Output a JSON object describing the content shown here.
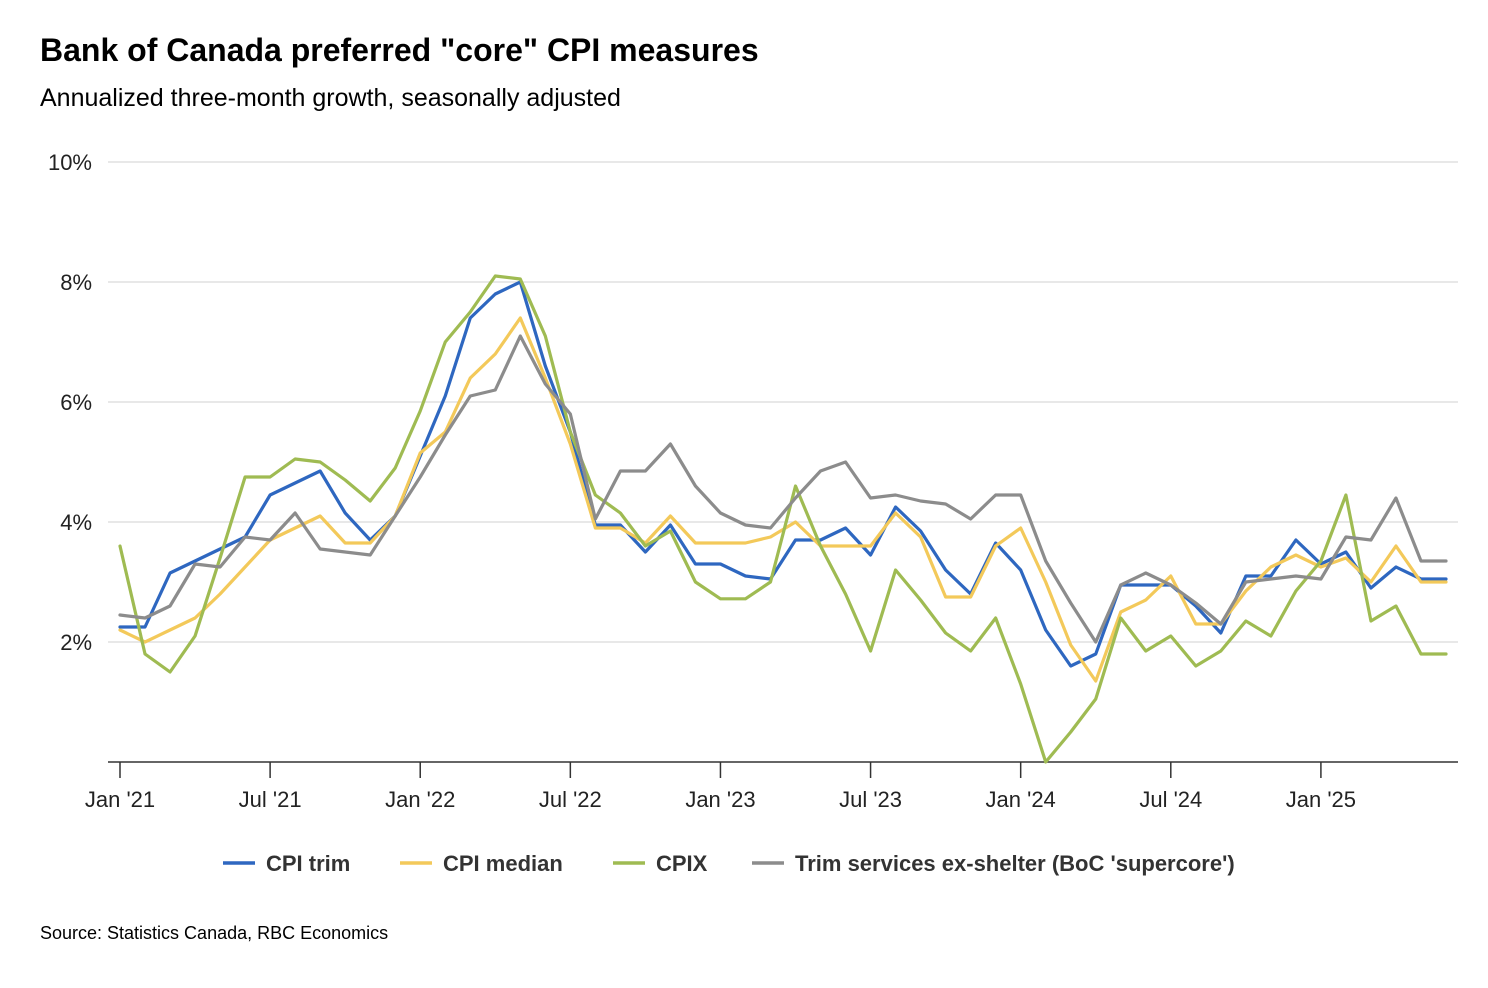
{
  "title": "Bank of Canada preferred \"core\" CPI measures",
  "subtitle": "Annualized three-month growth, seasonally adjusted",
  "source": "Source: Statistics Canada, RBC Economics",
  "chart_data": {
    "type": "line",
    "ylim": [
      0,
      10
    ],
    "y_ticks": [
      {
        "value": 2,
        "label": "2%"
      },
      {
        "value": 4,
        "label": "4%"
      },
      {
        "value": 6,
        "label": "6%"
      },
      {
        "value": 8,
        "label": "8%"
      },
      {
        "value": 10,
        "label": "10%"
      }
    ],
    "x_ticks": [
      {
        "index": 0,
        "label": "Jan '21"
      },
      {
        "index": 6,
        "label": "Jul '21"
      },
      {
        "index": 12,
        "label": "Jan '22"
      },
      {
        "index": 18,
        "label": "Jul '22"
      },
      {
        "index": 24,
        "label": "Jan '23"
      },
      {
        "index": 30,
        "label": "Jul '23"
      },
      {
        "index": 36,
        "label": "Jan '24"
      },
      {
        "index": 42,
        "label": "Jul '24"
      },
      {
        "index": 48,
        "label": "Jan '25"
      }
    ],
    "x_start": "Jan 2021",
    "x_frequency": "monthly",
    "n_points": 54,
    "grid": true,
    "legend_position": "bottom",
    "series": [
      {
        "name": "CPI trim",
        "color": "#2e67c0",
        "values": [
          2.25,
          2.25,
          3.15,
          3.35,
          3.55,
          3.75,
          4.45,
          4.65,
          4.85,
          4.15,
          3.7,
          4.1,
          5.1,
          6.1,
          7.4,
          7.8,
          8.0,
          6.6,
          5.5,
          3.95,
          3.95,
          3.5,
          3.95,
          3.3,
          3.3,
          3.1,
          3.05,
          3.7,
          3.7,
          3.9,
          3.45,
          4.25,
          3.85,
          3.2,
          2.8,
          3.65,
          3.2,
          2.2,
          1.6,
          1.8,
          2.95,
          2.95,
          2.95,
          2.6,
          2.15,
          3.1,
          3.1,
          3.7,
          3.3,
          3.5,
          2.9,
          3.25,
          3.05,
          3.05
        ]
      },
      {
        "name": "CPI median",
        "color": "#f3c95a",
        "values": [
          2.2,
          2.0,
          2.2,
          2.4,
          2.8,
          3.25,
          3.7,
          3.9,
          4.1,
          3.65,
          3.65,
          4.1,
          5.15,
          5.5,
          6.4,
          6.8,
          7.4,
          6.4,
          5.3,
          3.9,
          3.9,
          3.65,
          4.1,
          3.65,
          3.65,
          3.65,
          3.75,
          4.0,
          3.6,
          3.6,
          3.6,
          4.15,
          3.75,
          2.75,
          2.75,
          3.6,
          3.9,
          3.0,
          1.95,
          1.35,
          2.5,
          2.7,
          3.1,
          2.3,
          2.3,
          2.85,
          3.25,
          3.45,
          3.25,
          3.4,
          3.0,
          3.6,
          3.0,
          3.0
        ]
      },
      {
        "name": "CPIX",
        "color": "#9fbb52",
        "values": [
          3.6,
          1.8,
          1.5,
          2.1,
          3.4,
          4.75,
          4.75,
          5.05,
          5.0,
          4.7,
          4.35,
          4.9,
          5.85,
          7.0,
          7.5,
          8.1,
          8.05,
          7.1,
          5.5,
          4.45,
          4.15,
          3.6,
          3.85,
          3.0,
          2.72,
          2.72,
          3.0,
          4.6,
          3.6,
          2.8,
          1.85,
          3.2,
          2.7,
          2.15,
          1.85,
          2.4,
          1.3,
          0.0,
          0.5,
          1.05,
          2.4,
          1.85,
          2.1,
          1.6,
          1.85,
          2.35,
          2.1,
          2.85,
          3.35,
          4.45,
          2.35,
          2.6,
          1.8,
          1.8
        ]
      },
      {
        "name": "Trim services ex-shelter (BoC 'supercore')",
        "color": "#8c8c8c",
        "values": [
          2.45,
          2.4,
          2.6,
          3.3,
          3.25,
          3.75,
          3.7,
          4.15,
          3.55,
          3.5,
          3.45,
          4.1,
          4.75,
          5.45,
          6.1,
          6.2,
          7.1,
          6.3,
          5.8,
          4.05,
          4.85,
          4.85,
          5.3,
          4.6,
          4.15,
          3.95,
          3.9,
          4.4,
          4.85,
          5.0,
          4.4,
          4.45,
          4.35,
          4.3,
          4.05,
          4.45,
          4.45,
          3.35,
          2.65,
          2.0,
          2.95,
          3.15,
          2.95,
          2.65,
          2.3,
          3.0,
          3.05,
          3.1,
          3.05,
          3.75,
          3.7,
          4.4,
          3.35,
          3.35
        ]
      }
    ]
  }
}
